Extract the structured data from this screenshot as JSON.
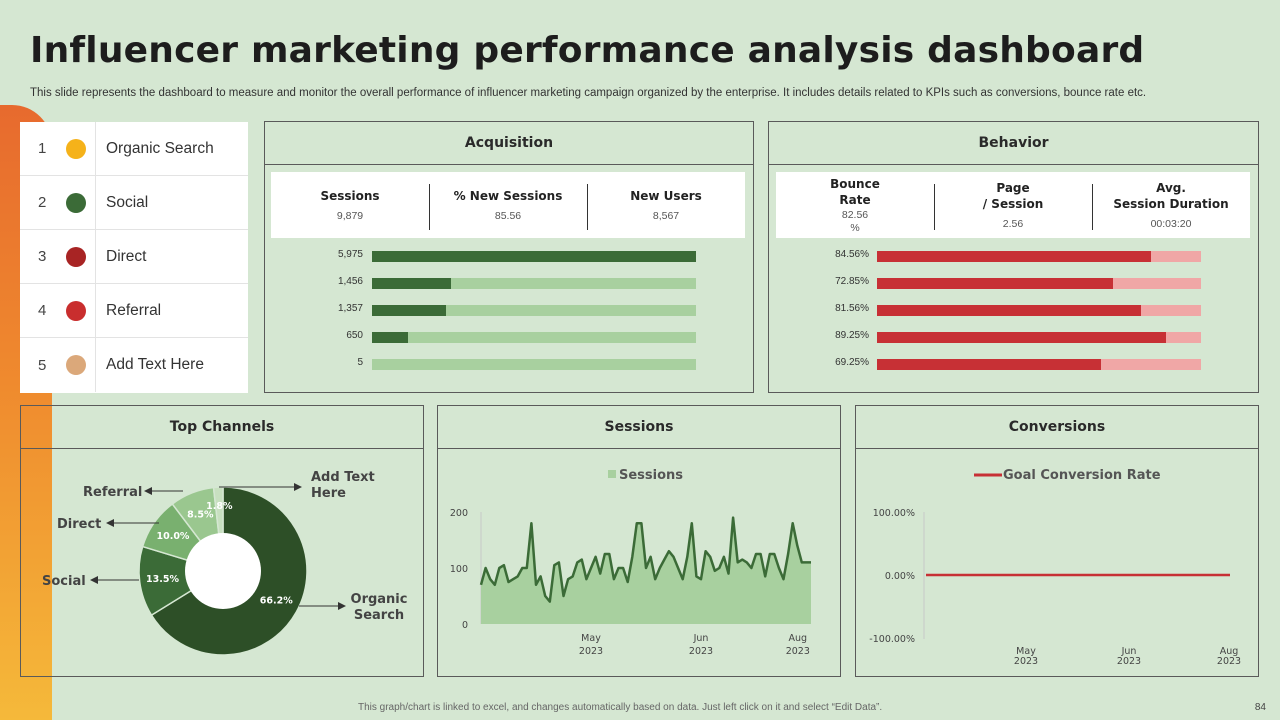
{
  "title": "Influencer marketing performance analysis dashboard",
  "subtitle": "This slide represents the dashboard to measure and monitor the overall performance of influencer marketing campaign organized  by the enterprise. It includes details related to KPIs such as conversions, bounce rate etc.",
  "colors": {
    "background": "#d5e7d2",
    "dark_green": "#3b6b37",
    "light_green": "#a8d09f",
    "red": "#c73035",
    "pink": "#f0a7a6",
    "pie_dark": "#2d4f27"
  },
  "legend": [
    {
      "num": "1",
      "label": "Organic Search",
      "color": "#f5b21a"
    },
    {
      "num": "2",
      "label": "Social",
      "color": "#3b6b37"
    },
    {
      "num": "3",
      "label": "Direct",
      "color": "#a82424"
    },
    {
      "num": "4",
      "label": "Referral",
      "color": "#c92e2e"
    },
    {
      "num": "5",
      "label": "Add Text Here",
      "color": "#dba87a"
    }
  ],
  "acquisition": {
    "title": "Acquisition",
    "kpis": [
      {
        "label": "Sessions",
        "value": "9,879"
      },
      {
        "label": "% New Sessions",
        "value": "85.56"
      },
      {
        "label": "New Users",
        "value": "8,567"
      }
    ],
    "bars": [
      {
        "label": "5,975",
        "fraction": 1.0
      },
      {
        "label": "1,456",
        "fraction": 0.245
      },
      {
        "label": "1,357",
        "fraction": 0.228
      },
      {
        "label": "650",
        "fraction": 0.11
      },
      {
        "label": "5",
        "fraction": 0.0
      }
    ]
  },
  "behavior": {
    "title": "Behavior",
    "kpis": [
      {
        "label1": "Bounce",
        "label2": "Rate",
        "value1": "82.56",
        "value2": "%"
      },
      {
        "label1": "Page",
        "label2": "/ Session",
        "value1": "2.56",
        "value2": ""
      },
      {
        "label1": "Avg.",
        "label2": "Session Duration",
        "value1": "00:03:20",
        "value2": ""
      }
    ],
    "bars": [
      {
        "label": "84.56%",
        "fraction": 0.8456
      },
      {
        "label": "72.85%",
        "fraction": 0.7285
      },
      {
        "label": "81.56%",
        "fraction": 0.8156
      },
      {
        "label": "89.25%",
        "fraction": 0.8925
      },
      {
        "label": "69.25%",
        "fraction": 0.6925
      }
    ]
  },
  "top_channels": {
    "title": "Top Channels",
    "callouts": {
      "add_text_1": "Add Text",
      "add_text_2": "Here",
      "referral": "Referral",
      "direct": "Direct",
      "social": "Social",
      "organic_1": "Organic",
      "organic_2": "Search"
    }
  },
  "sessions_panel": {
    "title": "Sessions"
  },
  "conversions_panel": {
    "title": "Conversions"
  },
  "chart_data": [
    {
      "type": "pie",
      "title": "Top Channels",
      "donut": true,
      "slices": [
        {
          "name": "Organic Search",
          "value": 66.2,
          "label": "66.2%",
          "color": "#2d4f27"
        },
        {
          "name": "Social",
          "value": 13.5,
          "label": "13.5%",
          "color": "#3b6b37"
        },
        {
          "name": "Direct",
          "value": 10.0,
          "label": "10.0%",
          "color": "#79b06f"
        },
        {
          "name": "Referral",
          "value": 8.5,
          "label": "8.5%",
          "color": "#9ac78f"
        },
        {
          "name": "Add Text Here",
          "value": 1.8,
          "label": "1.8%",
          "color": "#c8e0c0"
        }
      ]
    },
    {
      "type": "area",
      "title": "Sessions",
      "legend": "Sessions",
      "ylim": [
        0,
        200
      ],
      "yticks": [
        "200",
        "100",
        "0"
      ],
      "xticks": [
        {
          "l1": "May",
          "l2": "2023",
          "index": 25
        },
        {
          "l1": "Jun",
          "l2": "2023",
          "index": 50
        },
        {
          "l1": "Aug",
          "l2": "2023",
          "index": 75
        }
      ],
      "values": [
        70,
        100,
        80,
        70,
        100,
        105,
        75,
        80,
        85,
        100,
        100,
        180,
        70,
        85,
        50,
        40,
        105,
        110,
        50,
        80,
        85,
        110,
        115,
        80,
        100,
        120,
        90,
        125,
        125,
        80,
        100,
        100,
        75,
        120,
        180,
        180,
        100,
        120,
        80,
        100,
        115,
        130,
        120,
        100,
        80,
        120,
        180,
        85,
        80,
        130,
        120,
        95,
        100,
        120,
        90,
        190,
        110,
        115,
        110,
        100,
        125,
        125,
        85,
        125,
        125,
        100,
        80,
        125,
        180,
        140,
        110,
        110,
        110
      ]
    },
    {
      "type": "line",
      "title": "Conversions",
      "legend": "Goal Conversion Rate",
      "ylim": [
        -100,
        100
      ],
      "yticks": [
        "100.00%",
        "0.00%",
        "-100.00%"
      ],
      "xticks": [
        {
          "l1": "May",
          "l2": "2023"
        },
        {
          "l1": "Jun",
          "l2": "2023"
        },
        {
          "l1": "Aug",
          "l2": "2023"
        }
      ],
      "values": [
        0,
        0
      ]
    }
  ],
  "footer": "This graph/chart is linked to excel, and changes automatically based on data. Just left click on it and select “Edit Data”.",
  "page_number": "84"
}
